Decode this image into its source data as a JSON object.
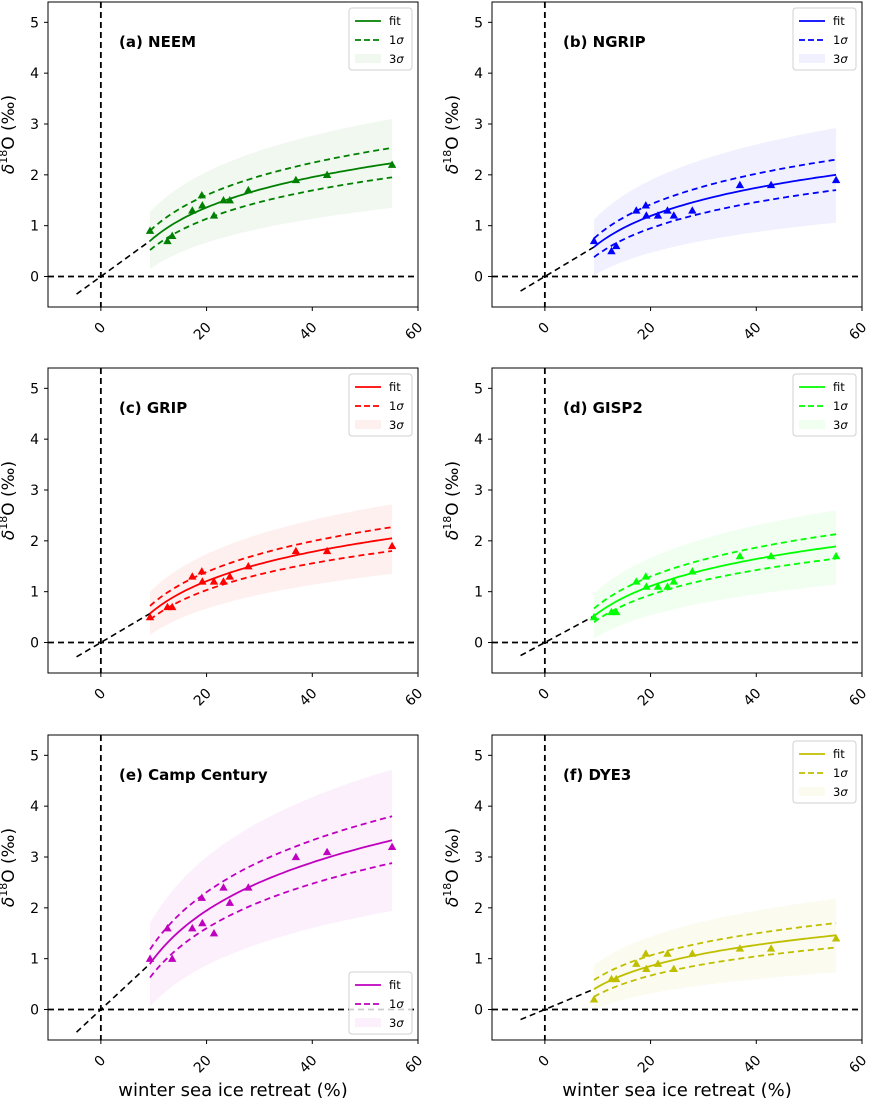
{
  "chart_data": [
    {
      "type": "scatter",
      "title": "(a) NEEM",
      "xlabel": "",
      "ylabel": "δ18O (‰)",
      "xlim": [
        -10,
        60
      ],
      "ylim": [
        -0.6,
        5.4
      ],
      "xticks": [
        0,
        20,
        40,
        60
      ],
      "yticks": [
        0,
        1,
        2,
        3,
        4,
        5
      ],
      "color": "#008000",
      "legend_position": "top-right",
      "legend": [
        "fit",
        "1σ",
        "3σ"
      ],
      "x": [
        9.3,
        12.6,
        13.5,
        17.3,
        19.1,
        19.2,
        21.4,
        23.2,
        24.4,
        27.9,
        36.9,
        42.8,
        55.1
      ],
      "y": [
        0.9,
        0.7,
        0.8,
        1.3,
        1.6,
        1.4,
        1.2,
        1.5,
        1.5,
        1.7,
        1.9,
        2.0,
        2.2
      ],
      "fit_range": [
        9.3,
        55.1
      ],
      "fit": [
        0.7,
        2.23
      ],
      "sigma1_upper": [
        0.9,
        2.53
      ],
      "sigma1_lower": [
        0.52,
        1.95
      ],
      "sigma3_upper": [
        1.27,
        3.1
      ],
      "sigma3_lower": [
        0.15,
        1.35
      ]
    },
    {
      "type": "scatter",
      "title": "(b) NGRIP",
      "xlabel": "",
      "ylabel": "δ18O (‰)",
      "xlim": [
        -10,
        60
      ],
      "ylim": [
        -0.6,
        5.4
      ],
      "xticks": [
        0,
        20,
        40,
        60
      ],
      "yticks": [
        0,
        1,
        2,
        3,
        4,
        5
      ],
      "color": "#0000ff",
      "legend_position": "top-right",
      "legend": [
        "fit",
        "1σ",
        "3σ"
      ],
      "x": [
        9.3,
        12.6,
        13.5,
        17.3,
        19.1,
        19.2,
        21.4,
        23.2,
        24.4,
        27.9,
        36.9,
        42.8,
        55.1
      ],
      "y": [
        0.7,
        0.5,
        0.6,
        1.3,
        1.4,
        1.2,
        1.2,
        1.3,
        1.2,
        1.3,
        1.8,
        1.8,
        1.9
      ],
      "fit_range": [
        9.3,
        55.1
      ],
      "fit": [
        0.58,
        2.0
      ],
      "sigma1_upper": [
        0.75,
        2.3
      ],
      "sigma1_lower": [
        0.38,
        1.7
      ],
      "sigma3_upper": [
        1.12,
        2.92
      ],
      "sigma3_lower": [
        0.02,
        1.06
      ]
    },
    {
      "type": "scatter",
      "title": "(c) GRIP",
      "xlabel": "",
      "ylabel": "δ18O (‰)",
      "xlim": [
        -10,
        60
      ],
      "ylim": [
        -0.6,
        5.4
      ],
      "xticks": [
        0,
        20,
        40,
        60
      ],
      "yticks": [
        0,
        1,
        2,
        3,
        4,
        5
      ],
      "color": "#ff0000",
      "legend_position": "top-right",
      "legend": [
        "fit",
        "1σ",
        "3σ"
      ],
      "x": [
        9.3,
        12.6,
        13.5,
        17.3,
        19.1,
        19.2,
        21.4,
        23.2,
        24.4,
        27.9,
        36.9,
        42.8,
        55.1
      ],
      "y": [
        0.5,
        0.7,
        0.7,
        1.3,
        1.4,
        1.2,
        1.2,
        1.2,
        1.3,
        1.5,
        1.8,
        1.8,
        1.9
      ],
      "fit_range": [
        9.3,
        55.1
      ],
      "fit": [
        0.57,
        2.05
      ],
      "sigma1_upper": [
        0.72,
        2.27
      ],
      "sigma1_lower": [
        0.45,
        1.8
      ],
      "sigma3_upper": [
        1.0,
        2.72
      ],
      "sigma3_lower": [
        0.15,
        1.35
      ]
    },
    {
      "type": "scatter",
      "title": "(d) GISP2",
      "xlabel": "",
      "ylabel": "δ18O (‰)",
      "xlim": [
        -10,
        60
      ],
      "ylim": [
        -0.6,
        5.4
      ],
      "xticks": [
        0,
        20,
        40,
        60
      ],
      "yticks": [
        0,
        1,
        2,
        3,
        4,
        5
      ],
      "color": "#00ff00",
      "legend_position": "top-right",
      "legend": [
        "fit",
        "1σ",
        "3σ"
      ],
      "x": [
        9.3,
        12.6,
        13.5,
        17.3,
        19.1,
        19.2,
        21.4,
        23.2,
        24.4,
        27.9,
        36.9,
        42.8,
        55.1
      ],
      "y": [
        0.5,
        0.6,
        0.6,
        1.2,
        1.3,
        1.1,
        1.1,
        1.1,
        1.2,
        1.4,
        1.7,
        1.7,
        1.7
      ],
      "fit_range": [
        9.3,
        55.1
      ],
      "fit": [
        0.52,
        1.89
      ],
      "sigma1_upper": [
        0.67,
        2.13
      ],
      "sigma1_lower": [
        0.4,
        1.65
      ],
      "sigma3_upper": [
        0.96,
        2.6
      ],
      "sigma3_lower": [
        0.08,
        1.14
      ]
    },
    {
      "type": "scatter",
      "title": "(e) Camp Century",
      "xlabel": "winter sea ice retreat (%)",
      "ylabel": "δ18O (‰)",
      "xlim": [
        -10,
        60
      ],
      "ylim": [
        -0.6,
        5.4
      ],
      "xticks": [
        0,
        20,
        40,
        60
      ],
      "yticks": [
        0,
        1,
        2,
        3,
        4,
        5
      ],
      "color": "#bf00bf",
      "legend_position": "bottom-right",
      "legend": [
        "fit",
        "1σ",
        "3σ"
      ],
      "x": [
        9.3,
        12.6,
        13.5,
        17.3,
        19.1,
        19.2,
        21.4,
        23.2,
        24.4,
        27.9,
        36.9,
        42.8,
        55.1
      ],
      "y": [
        1.0,
        1.6,
        1.0,
        1.6,
        2.2,
        1.7,
        1.5,
        2.4,
        2.1,
        2.4,
        3.0,
        3.1,
        3.2
      ],
      "fit_range": [
        9.3,
        55.1
      ],
      "fit": [
        0.9,
        3.33
      ],
      "sigma1_upper": [
        1.18,
        3.8
      ],
      "sigma1_lower": [
        0.63,
        2.88
      ],
      "sigma3_upper": [
        1.7,
        4.72
      ],
      "sigma3_lower": [
        0.06,
        1.94
      ]
    },
    {
      "type": "scatter",
      "title": "(f) DYE3",
      "xlabel": "winter sea ice retreat (%)",
      "ylabel": "δ18O (‰)",
      "xlim": [
        -10,
        60
      ],
      "ylim": [
        -0.6,
        5.4
      ],
      "xticks": [
        0,
        20,
        40,
        60
      ],
      "yticks": [
        0,
        1,
        2,
        3,
        4,
        5
      ],
      "color": "#bfbf00",
      "legend_position": "top-right",
      "legend": [
        "fit",
        "1σ",
        "3σ"
      ],
      "x": [
        9.3,
        12.6,
        13.5,
        17.3,
        19.1,
        19.2,
        21.4,
        23.2,
        24.4,
        27.9,
        36.9,
        42.8,
        55.1
      ],
      "y": [
        0.2,
        0.6,
        0.6,
        0.9,
        1.1,
        0.8,
        0.9,
        1.1,
        0.8,
        1.1,
        1.2,
        1.2,
        1.4
      ],
      "fit_range": [
        9.3,
        55.1
      ],
      "fit": [
        0.4,
        1.46
      ],
      "sigma1_upper": [
        0.58,
        1.7
      ],
      "sigma1_lower": [
        0.25,
        1.22
      ],
      "sigma3_upper": [
        0.87,
        2.18
      ],
      "sigma3_lower": [
        0.0,
        0.73
      ]
    }
  ],
  "reference_line": {
    "x_start": -4.6,
    "style": "black dashed through origin to fit start"
  },
  "zero_lines": {
    "x": 0,
    "y": 0
  }
}
